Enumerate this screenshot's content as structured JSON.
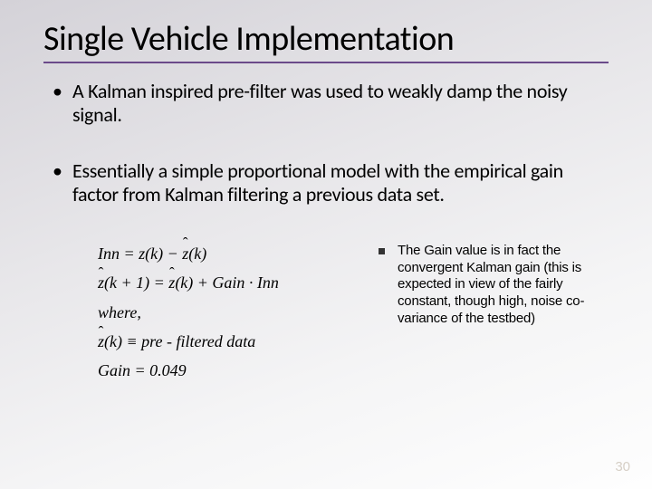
{
  "title": "Single Vehicle Implementation",
  "bullets": [
    "A Kalman inspired pre-filter was used to weakly damp the noisy signal.",
    "Essentially a simple proportional model with the empirical gain factor from Kalman filtering a previous data set."
  ],
  "equations": {
    "line1_lhs": "Inn",
    "line1_eq": " = z(k) − ",
    "line1_zhat": "z",
    "line1_tail": "(k)",
    "line2_zhat1": "z",
    "line2_mid1": "(k + 1) = ",
    "line2_zhat2": "z",
    "line2_mid2": "(k) + Gain · Inn",
    "where": "where,",
    "line4_zhat": "z",
    "line4_tail": "(k) ≡ pre - filtered data",
    "gain": "Gain = 0.049"
  },
  "gain_note": "The Gain value is in fact the convergent Kalman gain (this is expected in view of the fairly constant, though high, noise co-variance of the testbed)",
  "slide_number": "30",
  "colors": {
    "title_rule": "#6b4a8a",
    "bg_start": "#d4d2d8",
    "bg_end": "#fefefe",
    "text": "#000000"
  }
}
